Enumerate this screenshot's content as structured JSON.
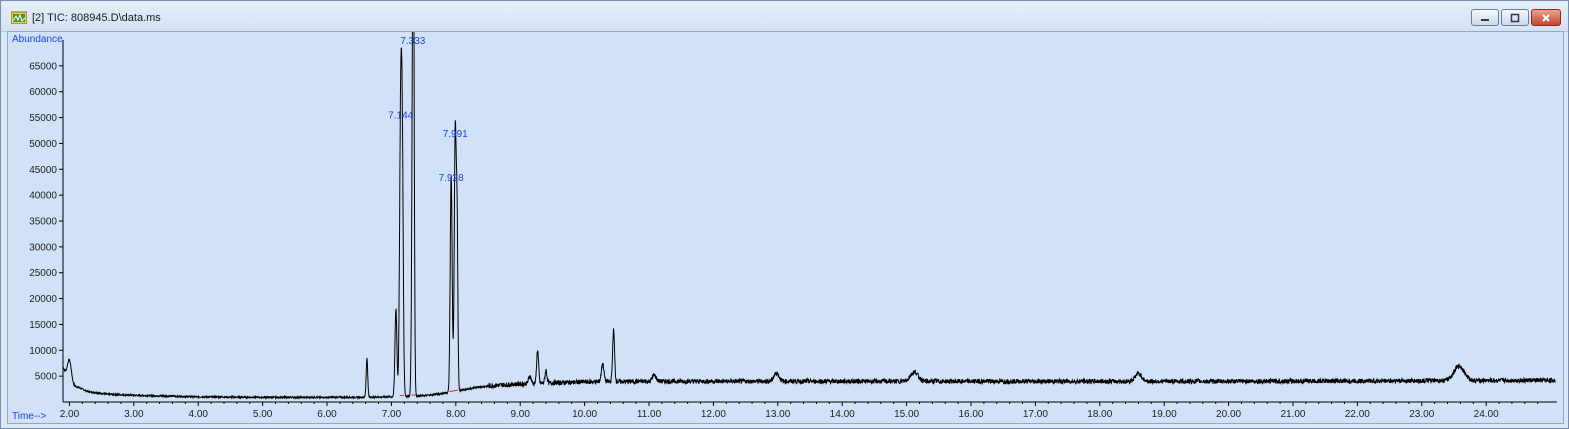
{
  "window": {
    "title": "[2] TIC: 808945.D\\data.ms",
    "icon": "chromatogram-app-icon",
    "controls": [
      "minimize-icon",
      "maximize-icon",
      "close-icon"
    ]
  },
  "chart_data": {
    "type": "line",
    "title": "",
    "ylabel": "Abundance",
    "xlabel": "Time-->",
    "xlim": [
      1.9,
      25.1
    ],
    "ylim": [
      0,
      70000
    ],
    "xticks": [
      "2.00",
      "3.00",
      "4.00",
      "5.00",
      "6.00",
      "7.00",
      "8.00",
      "9.00",
      "10.00",
      "11.00",
      "12.00",
      "13.00",
      "14.00",
      "15.00",
      "16.00",
      "17.00",
      "18.00",
      "19.00",
      "20.00",
      "21.00",
      "22.00",
      "23.00",
      "24.00"
    ],
    "xtick_values": [
      2,
      3,
      4,
      5,
      6,
      7,
      8,
      9,
      10,
      11,
      12,
      13,
      14,
      15,
      16,
      17,
      18,
      19,
      20,
      21,
      22,
      23,
      24
    ],
    "yticks": [
      "5000",
      "10000",
      "15000",
      "20000",
      "25000",
      "30000",
      "35000",
      "40000",
      "45000",
      "50000",
      "55000",
      "60000",
      "65000"
    ],
    "ytick_values": [
      5000,
      10000,
      15000,
      20000,
      25000,
      30000,
      35000,
      40000,
      45000,
      50000,
      55000,
      60000,
      65000
    ],
    "grid": false,
    "series": [
      {
        "color": "#000000",
        "baseline": [
          [
            1.9,
            6800
          ],
          [
            2.0,
            3500
          ],
          [
            2.3,
            2000
          ],
          [
            2.6,
            1500
          ],
          [
            3.0,
            1300
          ],
          [
            4.0,
            1000
          ],
          [
            5.0,
            900
          ],
          [
            6.0,
            900
          ],
          [
            6.5,
            900
          ],
          [
            7.0,
            1000
          ],
          [
            7.5,
            1200
          ],
          [
            8.0,
            2000
          ],
          [
            8.3,
            2800
          ],
          [
            8.6,
            3200
          ],
          [
            9.0,
            3500
          ],
          [
            10.0,
            3900
          ],
          [
            11.0,
            4000
          ],
          [
            14.0,
            4000
          ],
          [
            18.0,
            4000
          ],
          [
            20.0,
            4000
          ],
          [
            23.0,
            4100
          ],
          [
            25.0,
            4200
          ]
        ],
        "peaks": [
          {
            "rt": 2.0,
            "height": 4500,
            "width": 0.03
          },
          {
            "rt": 6.62,
            "height": 7500,
            "width": 0.012
          },
          {
            "rt": 7.07,
            "height": 17000,
            "width": 0.015
          },
          {
            "rt": 7.144,
            "height": 54000,
            "width": 0.017
          },
          {
            "rt": 7.17,
            "height": 39000,
            "width": 0.015
          },
          {
            "rt": 7.333,
            "height": 68500,
            "width": 0.015
          },
          {
            "rt": 7.345,
            "height": 41000,
            "width": 0.012
          },
          {
            "rt": 7.928,
            "height": 42000,
            "width": 0.015
          },
          {
            "rt": 7.991,
            "height": 50500,
            "width": 0.015
          },
          {
            "rt": 8.02,
            "height": 30000,
            "width": 0.012
          },
          {
            "rt": 9.15,
            "height": 1500,
            "width": 0.02
          },
          {
            "rt": 9.27,
            "height": 6500,
            "width": 0.015
          },
          {
            "rt": 9.4,
            "height": 2500,
            "width": 0.015
          },
          {
            "rt": 10.28,
            "height": 3500,
            "width": 0.02
          },
          {
            "rt": 10.45,
            "height": 10000,
            "width": 0.015
          },
          {
            "rt": 11.08,
            "height": 1200,
            "width": 0.03
          },
          {
            "rt": 12.98,
            "height": 1600,
            "width": 0.04
          },
          {
            "rt": 15.12,
            "height": 1800,
            "width": 0.06
          },
          {
            "rt": 18.6,
            "height": 1500,
            "width": 0.05
          },
          {
            "rt": 23.58,
            "height": 2800,
            "width": 0.08
          }
        ]
      }
    ],
    "annotations": [
      {
        "label": "7.333",
        "x": 7.333,
        "y": 68500
      },
      {
        "label": "7.144",
        "x": 7.144,
        "y": 54000
      },
      {
        "label": "7.991",
        "x": 7.991,
        "y": 50500
      },
      {
        "label": "7.928",
        "x": 7.928,
        "y": 42000
      }
    ],
    "integration_marks": [
      {
        "x1": 7.13,
        "x2": 7.19,
        "color": "#e02020"
      },
      {
        "x1": 7.31,
        "x2": 7.38,
        "color": "#e02020"
      },
      {
        "x1": 7.9,
        "x2": 8.03,
        "color": "#e02020"
      }
    ],
    "colors": {
      "axis_labels": "#1f3fd8",
      "trace": "#000000",
      "integration": "#e02020",
      "plot_bg": "#d1e2f8"
    }
  }
}
